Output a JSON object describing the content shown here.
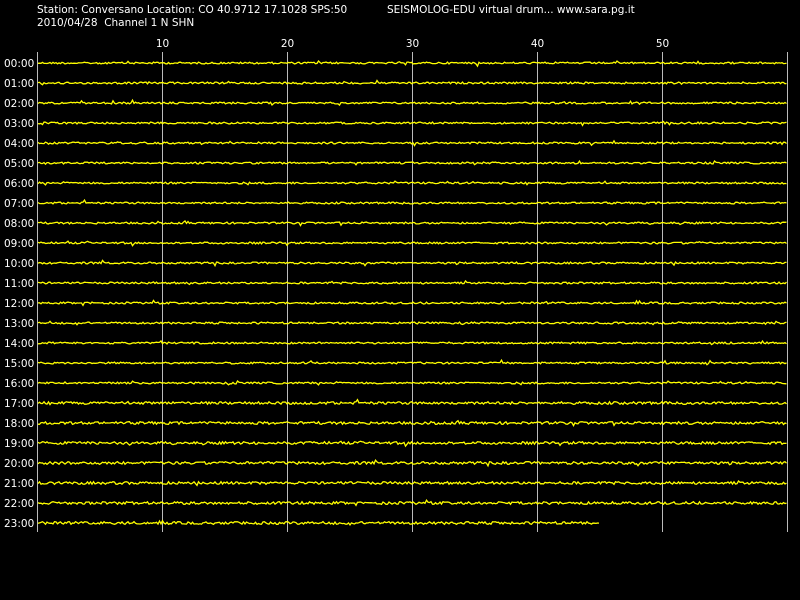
{
  "header": {
    "line1": "Station: Conversano Location: CO 40.9712 17.1028 SPS:50",
    "line2": "2010/04/28  Channel 1 N SHN",
    "right": "SEISMOLOG-EDU virtual drum... www.sara.pg.it"
  },
  "colors": {
    "background": "#000000",
    "trace": "#ffff00",
    "grid": "#bbbbbb",
    "text": "#ffffff"
  },
  "chart_data": {
    "type": "line",
    "title": "",
    "xlabel": "",
    "ylabel": "",
    "xlim": [
      0,
      60
    ],
    "x_ticks": [
      "10",
      "20",
      "30",
      "40",
      "50"
    ],
    "x_tick_values": [
      10,
      20,
      30,
      40,
      50
    ],
    "rows": [
      "00:00",
      "01:00",
      "02:00",
      "03:00",
      "04:00",
      "05:00",
      "06:00",
      "07:00",
      "08:00",
      "09:00",
      "10:00",
      "11:00",
      "12:00",
      "13:00",
      "14:00",
      "15:00",
      "16:00",
      "17:00",
      "18:00",
      "19:00",
      "20:00",
      "21:00",
      "22:00",
      "23:00"
    ],
    "last_row_end_minute": 45,
    "grid": true
  }
}
